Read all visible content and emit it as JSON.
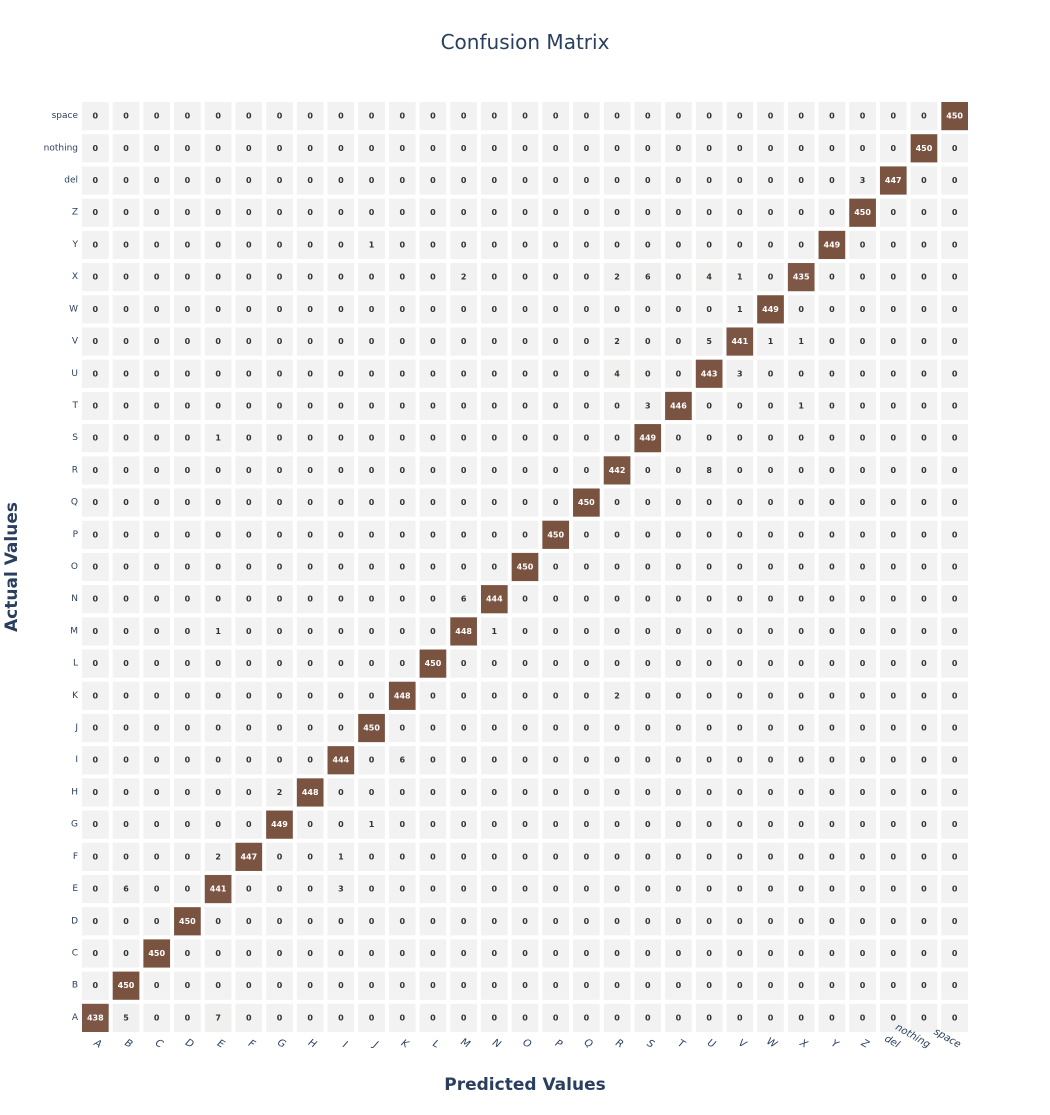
{
  "chart_data": {
    "type": "heatmap",
    "title": "Confusion Matrix",
    "xlabel": "Predicted Values",
    "ylabel": "Actual Values",
    "x_categories": [
      "A",
      "B",
      "C",
      "D",
      "E",
      "F",
      "G",
      "H",
      "I",
      "J",
      "K",
      "L",
      "M",
      "N",
      "O",
      "P",
      "Q",
      "R",
      "S",
      "T",
      "U",
      "V",
      "W",
      "X",
      "Y",
      "Z",
      "del",
      "nothing",
      "space"
    ],
    "y_categories": [
      "A",
      "B",
      "C",
      "D",
      "E",
      "F",
      "G",
      "H",
      "I",
      "J",
      "K",
      "L",
      "M",
      "N",
      "O",
      "P",
      "Q",
      "R",
      "S",
      "T",
      "U",
      "V",
      "W",
      "X",
      "Y",
      "Z",
      "del",
      "nothing",
      "space"
    ],
    "z": [
      [
        438,
        5,
        0,
        0,
        7,
        0,
        0,
        0,
        0,
        0,
        0,
        0,
        0,
        0,
        0,
        0,
        0,
        0,
        0,
        0,
        0,
        0,
        0,
        0,
        0,
        0,
        0,
        0,
        0
      ],
      [
        0,
        450,
        0,
        0,
        0,
        0,
        0,
        0,
        0,
        0,
        0,
        0,
        0,
        0,
        0,
        0,
        0,
        0,
        0,
        0,
        0,
        0,
        0,
        0,
        0,
        0,
        0,
        0,
        0
      ],
      [
        0,
        0,
        450,
        0,
        0,
        0,
        0,
        0,
        0,
        0,
        0,
        0,
        0,
        0,
        0,
        0,
        0,
        0,
        0,
        0,
        0,
        0,
        0,
        0,
        0,
        0,
        0,
        0,
        0
      ],
      [
        0,
        0,
        0,
        450,
        0,
        0,
        0,
        0,
        0,
        0,
        0,
        0,
        0,
        0,
        0,
        0,
        0,
        0,
        0,
        0,
        0,
        0,
        0,
        0,
        0,
        0,
        0,
        0,
        0
      ],
      [
        0,
        6,
        0,
        0,
        441,
        0,
        0,
        0,
        3,
        0,
        0,
        0,
        0,
        0,
        0,
        0,
        0,
        0,
        0,
        0,
        0,
        0,
        0,
        0,
        0,
        0,
        0,
        0,
        0
      ],
      [
        0,
        0,
        0,
        0,
        2,
        447,
        0,
        0,
        1,
        0,
        0,
        0,
        0,
        0,
        0,
        0,
        0,
        0,
        0,
        0,
        0,
        0,
        0,
        0,
        0,
        0,
        0,
        0,
        0
      ],
      [
        0,
        0,
        0,
        0,
        0,
        0,
        449,
        0,
        0,
        1,
        0,
        0,
        0,
        0,
        0,
        0,
        0,
        0,
        0,
        0,
        0,
        0,
        0,
        0,
        0,
        0,
        0,
        0,
        0
      ],
      [
        0,
        0,
        0,
        0,
        0,
        0,
        2,
        448,
        0,
        0,
        0,
        0,
        0,
        0,
        0,
        0,
        0,
        0,
        0,
        0,
        0,
        0,
        0,
        0,
        0,
        0,
        0,
        0,
        0
      ],
      [
        0,
        0,
        0,
        0,
        0,
        0,
        0,
        0,
        444,
        0,
        6,
        0,
        0,
        0,
        0,
        0,
        0,
        0,
        0,
        0,
        0,
        0,
        0,
        0,
        0,
        0,
        0,
        0,
        0
      ],
      [
        0,
        0,
        0,
        0,
        0,
        0,
        0,
        0,
        0,
        450,
        0,
        0,
        0,
        0,
        0,
        0,
        0,
        0,
        0,
        0,
        0,
        0,
        0,
        0,
        0,
        0,
        0,
        0,
        0
      ],
      [
        0,
        0,
        0,
        0,
        0,
        0,
        0,
        0,
        0,
        0,
        448,
        0,
        0,
        0,
        0,
        0,
        0,
        2,
        0,
        0,
        0,
        0,
        0,
        0,
        0,
        0,
        0,
        0,
        0
      ],
      [
        0,
        0,
        0,
        0,
        0,
        0,
        0,
        0,
        0,
        0,
        0,
        450,
        0,
        0,
        0,
        0,
        0,
        0,
        0,
        0,
        0,
        0,
        0,
        0,
        0,
        0,
        0,
        0,
        0
      ],
      [
        0,
        0,
        0,
        0,
        1,
        0,
        0,
        0,
        0,
        0,
        0,
        0,
        448,
        1,
        0,
        0,
        0,
        0,
        0,
        0,
        0,
        0,
        0,
        0,
        0,
        0,
        0,
        0,
        0
      ],
      [
        0,
        0,
        0,
        0,
        0,
        0,
        0,
        0,
        0,
        0,
        0,
        0,
        6,
        444,
        0,
        0,
        0,
        0,
        0,
        0,
        0,
        0,
        0,
        0,
        0,
        0,
        0,
        0,
        0
      ],
      [
        0,
        0,
        0,
        0,
        0,
        0,
        0,
        0,
        0,
        0,
        0,
        0,
        0,
        0,
        450,
        0,
        0,
        0,
        0,
        0,
        0,
        0,
        0,
        0,
        0,
        0,
        0,
        0,
        0
      ],
      [
        0,
        0,
        0,
        0,
        0,
        0,
        0,
        0,
        0,
        0,
        0,
        0,
        0,
        0,
        0,
        450,
        0,
        0,
        0,
        0,
        0,
        0,
        0,
        0,
        0,
        0,
        0,
        0,
        0
      ],
      [
        0,
        0,
        0,
        0,
        0,
        0,
        0,
        0,
        0,
        0,
        0,
        0,
        0,
        0,
        0,
        0,
        450,
        0,
        0,
        0,
        0,
        0,
        0,
        0,
        0,
        0,
        0,
        0,
        0
      ],
      [
        0,
        0,
        0,
        0,
        0,
        0,
        0,
        0,
        0,
        0,
        0,
        0,
        0,
        0,
        0,
        0,
        0,
        442,
        0,
        0,
        8,
        0,
        0,
        0,
        0,
        0,
        0,
        0,
        0
      ],
      [
        0,
        0,
        0,
        0,
        1,
        0,
        0,
        0,
        0,
        0,
        0,
        0,
        0,
        0,
        0,
        0,
        0,
        0,
        449,
        0,
        0,
        0,
        0,
        0,
        0,
        0,
        0,
        0,
        0
      ],
      [
        0,
        0,
        0,
        0,
        0,
        0,
        0,
        0,
        0,
        0,
        0,
        0,
        0,
        0,
        0,
        0,
        0,
        0,
        3,
        446,
        0,
        0,
        0,
        1,
        0,
        0,
        0,
        0,
        0
      ],
      [
        0,
        0,
        0,
        0,
        0,
        0,
        0,
        0,
        0,
        0,
        0,
        0,
        0,
        0,
        0,
        0,
        0,
        4,
        0,
        0,
        443,
        3,
        0,
        0,
        0,
        0,
        0,
        0,
        0
      ],
      [
        0,
        0,
        0,
        0,
        0,
        0,
        0,
        0,
        0,
        0,
        0,
        0,
        0,
        0,
        0,
        0,
        0,
        2,
        0,
        0,
        5,
        441,
        1,
        1,
        0,
        0,
        0,
        0,
        0
      ],
      [
        0,
        0,
        0,
        0,
        0,
        0,
        0,
        0,
        0,
        0,
        0,
        0,
        0,
        0,
        0,
        0,
        0,
        0,
        0,
        0,
        0,
        1,
        449,
        0,
        0,
        0,
        0,
        0,
        0
      ],
      [
        0,
        0,
        0,
        0,
        0,
        0,
        0,
        0,
        0,
        0,
        0,
        0,
        2,
        0,
        0,
        0,
        0,
        2,
        6,
        0,
        4,
        1,
        0,
        435,
        0,
        0,
        0,
        0,
        0
      ],
      [
        0,
        0,
        0,
        0,
        0,
        0,
        0,
        0,
        0,
        1,
        0,
        0,
        0,
        0,
        0,
        0,
        0,
        0,
        0,
        0,
        0,
        0,
        0,
        0,
        449,
        0,
        0,
        0,
        0
      ],
      [
        0,
        0,
        0,
        0,
        0,
        0,
        0,
        0,
        0,
        0,
        0,
        0,
        0,
        0,
        0,
        0,
        0,
        0,
        0,
        0,
        0,
        0,
        0,
        0,
        0,
        450,
        0,
        0,
        0
      ],
      [
        0,
        0,
        0,
        0,
        0,
        0,
        0,
        0,
        0,
        0,
        0,
        0,
        0,
        0,
        0,
        0,
        0,
        0,
        0,
        0,
        0,
        0,
        0,
        0,
        0,
        3,
        447,
        0,
        0
      ],
      [
        0,
        0,
        0,
        0,
        0,
        0,
        0,
        0,
        0,
        0,
        0,
        0,
        0,
        0,
        0,
        0,
        0,
        0,
        0,
        0,
        0,
        0,
        0,
        0,
        0,
        0,
        0,
        450,
        0
      ],
      [
        0,
        0,
        0,
        0,
        0,
        0,
        0,
        0,
        0,
        0,
        0,
        0,
        0,
        0,
        0,
        0,
        0,
        0,
        0,
        0,
        0,
        0,
        0,
        0,
        0,
        0,
        0,
        0,
        450
      ]
    ],
    "zmin": 0,
    "zmax": 450,
    "colorscale": {
      "low": "#f2f2f2",
      "high": "#7a5240"
    },
    "text_colors": {
      "low": "#333333",
      "high": "#ffffff"
    },
    "grid": false,
    "legend": "none"
  }
}
